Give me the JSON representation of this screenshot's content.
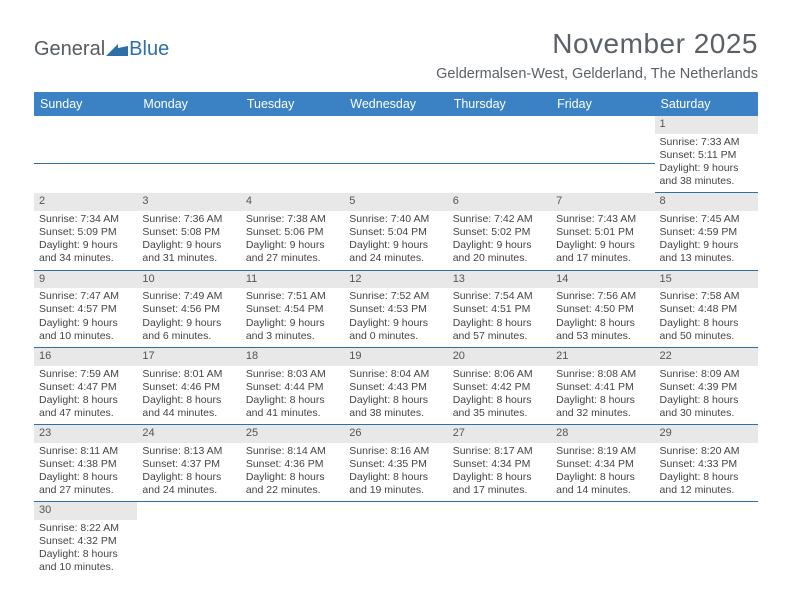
{
  "logo": {
    "general": "Genera",
    "l": "l",
    "blue": "Blue"
  },
  "colors": {
    "header_bg": "#3b82c4",
    "header_text": "#ffffff",
    "daynum_bg": "#e8e8e8",
    "rule": "#2f6fa8",
    "text": "#444444",
    "title": "#5b6066"
  },
  "title": "November 2025",
  "location": "Geldermalsen-West, Gelderland, The Netherlands",
  "day_names": [
    "Sunday",
    "Monday",
    "Tuesday",
    "Wednesday",
    "Thursday",
    "Friday",
    "Saturday"
  ],
  "weeks": [
    [
      null,
      null,
      null,
      null,
      null,
      null,
      {
        "n": "1",
        "sr": "7:33 AM",
        "ss": "5:11 PM",
        "dl": "9 hours and 38 minutes."
      }
    ],
    [
      {
        "n": "2",
        "sr": "7:34 AM",
        "ss": "5:09 PM",
        "dl": "9 hours and 34 minutes."
      },
      {
        "n": "3",
        "sr": "7:36 AM",
        "ss": "5:08 PM",
        "dl": "9 hours and 31 minutes."
      },
      {
        "n": "4",
        "sr": "7:38 AM",
        "ss": "5:06 PM",
        "dl": "9 hours and 27 minutes."
      },
      {
        "n": "5",
        "sr": "7:40 AM",
        "ss": "5:04 PM",
        "dl": "9 hours and 24 minutes."
      },
      {
        "n": "6",
        "sr": "7:42 AM",
        "ss": "5:02 PM",
        "dl": "9 hours and 20 minutes."
      },
      {
        "n": "7",
        "sr": "7:43 AM",
        "ss": "5:01 PM",
        "dl": "9 hours and 17 minutes."
      },
      {
        "n": "8",
        "sr": "7:45 AM",
        "ss": "4:59 PM",
        "dl": "9 hours and 13 minutes."
      }
    ],
    [
      {
        "n": "9",
        "sr": "7:47 AM",
        "ss": "4:57 PM",
        "dl": "9 hours and 10 minutes."
      },
      {
        "n": "10",
        "sr": "7:49 AM",
        "ss": "4:56 PM",
        "dl": "9 hours and 6 minutes."
      },
      {
        "n": "11",
        "sr": "7:51 AM",
        "ss": "4:54 PM",
        "dl": "9 hours and 3 minutes."
      },
      {
        "n": "12",
        "sr": "7:52 AM",
        "ss": "4:53 PM",
        "dl": "9 hours and 0 minutes."
      },
      {
        "n": "13",
        "sr": "7:54 AM",
        "ss": "4:51 PM",
        "dl": "8 hours and 57 minutes."
      },
      {
        "n": "14",
        "sr": "7:56 AM",
        "ss": "4:50 PM",
        "dl": "8 hours and 53 minutes."
      },
      {
        "n": "15",
        "sr": "7:58 AM",
        "ss": "4:48 PM",
        "dl": "8 hours and 50 minutes."
      }
    ],
    [
      {
        "n": "16",
        "sr": "7:59 AM",
        "ss": "4:47 PM",
        "dl": "8 hours and 47 minutes."
      },
      {
        "n": "17",
        "sr": "8:01 AM",
        "ss": "4:46 PM",
        "dl": "8 hours and 44 minutes."
      },
      {
        "n": "18",
        "sr": "8:03 AM",
        "ss": "4:44 PM",
        "dl": "8 hours and 41 minutes."
      },
      {
        "n": "19",
        "sr": "8:04 AM",
        "ss": "4:43 PM",
        "dl": "8 hours and 38 minutes."
      },
      {
        "n": "20",
        "sr": "8:06 AM",
        "ss": "4:42 PM",
        "dl": "8 hours and 35 minutes."
      },
      {
        "n": "21",
        "sr": "8:08 AM",
        "ss": "4:41 PM",
        "dl": "8 hours and 32 minutes."
      },
      {
        "n": "22",
        "sr": "8:09 AM",
        "ss": "4:39 PM",
        "dl": "8 hours and 30 minutes."
      }
    ],
    [
      {
        "n": "23",
        "sr": "8:11 AM",
        "ss": "4:38 PM",
        "dl": "8 hours and 27 minutes."
      },
      {
        "n": "24",
        "sr": "8:13 AM",
        "ss": "4:37 PM",
        "dl": "8 hours and 24 minutes."
      },
      {
        "n": "25",
        "sr": "8:14 AM",
        "ss": "4:36 PM",
        "dl": "8 hours and 22 minutes."
      },
      {
        "n": "26",
        "sr": "8:16 AM",
        "ss": "4:35 PM",
        "dl": "8 hours and 19 minutes."
      },
      {
        "n": "27",
        "sr": "8:17 AM",
        "ss": "4:34 PM",
        "dl": "8 hours and 17 minutes."
      },
      {
        "n": "28",
        "sr": "8:19 AM",
        "ss": "4:34 PM",
        "dl": "8 hours and 14 minutes."
      },
      {
        "n": "29",
        "sr": "8:20 AM",
        "ss": "4:33 PM",
        "dl": "8 hours and 12 minutes."
      }
    ],
    [
      {
        "n": "30",
        "sr": "8:22 AM",
        "ss": "4:32 PM",
        "dl": "8 hours and 10 minutes."
      },
      null,
      null,
      null,
      null,
      null,
      null
    ]
  ],
  "labels": {
    "sunrise": "Sunrise: ",
    "sunset": "Sunset: ",
    "daylight": "Daylight: "
  }
}
